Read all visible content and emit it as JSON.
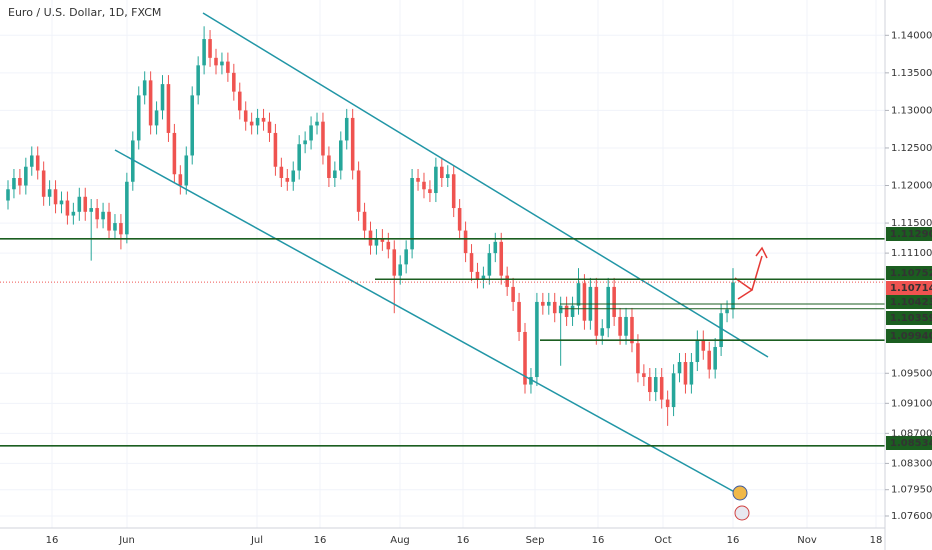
{
  "chart_data": {
    "type": "candlestick",
    "title": "Euro / U.S. Dollar, 1D, FXCM",
    "up_color": "#26a69a",
    "down_color": "#ef5350",
    "ylim": [
      1.0744,
      1.1447
    ],
    "yticks": [
      {
        "value": 1.14,
        "label": "1.14000"
      },
      {
        "value": 1.135,
        "label": "1.13500"
      },
      {
        "value": 1.13,
        "label": "1.13000"
      },
      {
        "value": 1.125,
        "label": "1.12500"
      },
      {
        "value": 1.12,
        "label": "1.12000"
      },
      {
        "value": 1.115,
        "label": "1.11500"
      },
      {
        "value": 1.111,
        "label": "1.11100"
      },
      {
        "value": 1.095,
        "label": "1.09500"
      },
      {
        "value": 1.091,
        "label": "1.09100"
      },
      {
        "value": 1.087,
        "label": "1.08700"
      },
      {
        "value": 1.083,
        "label": "1.08300"
      },
      {
        "value": 1.0795,
        "label": "1.07950"
      },
      {
        "value": 1.076,
        "label": "1.07600"
      }
    ],
    "xtick_labels": [
      "16",
      "Jun",
      "Jul",
      "16",
      "Aug",
      "16",
      "Sep",
      "16",
      "Oct",
      "16",
      "Nov",
      "18"
    ],
    "levels": [
      {
        "value": 1.1129,
        "label": "1.11290"
      },
      {
        "value": 1.10752,
        "label": "1.10752"
      },
      {
        "value": 1.10423,
        "label": "1.10423"
      },
      {
        "value": 1.10359,
        "label": "1.10359"
      },
      {
        "value": 1.0994,
        "label": "1.09940"
      },
      {
        "value": 1.08534,
        "label": "1.08534"
      }
    ],
    "last_price": {
      "value": 1.10714,
      "label": "1.10714"
    },
    "open": [
      1.118,
      1.1195,
      1.121,
      1.12,
      1.1225,
      1.124,
      1.122,
      1.1185,
      1.1195,
      1.1175,
      1.118,
      1.116,
      1.1165,
      1.1185,
      1.1165,
      1.117,
      1.1155,
      1.1165,
      1.114,
      1.115,
      1.1135,
      1.1205,
      1.126,
      1.132,
      1.134,
      1.128,
      1.13,
      1.1335,
      1.127,
      1.1215,
      1.12,
      1.124,
      1.132,
      1.136,
      1.1395,
      1.137,
      1.136,
      1.1365,
      1.135,
      1.1325,
      1.13,
      1.1285,
      1.128,
      1.129,
      1.1285,
      1.127,
      1.1225,
      1.121,
      1.1205,
      1.122,
      1.1255,
      1.126,
      1.128,
      1.1285,
      1.124,
      1.121,
      1.122,
      1.126,
      1.129,
      1.122,
      1.1165,
      1.114,
      1.112,
      1.113,
      1.1125,
      1.1115,
      1.108,
      1.1095,
      1.1115,
      1.121,
      1.1205,
      1.1195,
      1.119,
      1.1225,
      1.121,
      1.1215,
      1.117,
      1.114,
      1.111,
      1.1085,
      1.1075,
      1.108,
      1.111,
      1.1125,
      1.108,
      1.1065,
      1.1045,
      1.1005,
      1.0935,
      1.0945,
      1.1045,
      1.104,
      1.1045,
      1.103,
      1.104,
      1.1025,
      1.104,
      1.107,
      1.102,
      1.1065,
      1.1,
      1.101,
      1.1065,
      1.1025,
      1.1,
      1.1025,
      1.099,
      1.095,
      1.0945,
      1.0925,
      1.0945,
      1.0915,
      1.0905,
      1.095,
      1.0965,
      1.0935,
      1.0965,
      1.0995,
      1.098,
      1.0955,
      1.0985,
      1.103,
      1.1035
    ],
    "high": [
      1.1207,
      1.1222,
      1.1222,
      1.1237,
      1.1252,
      1.1252,
      1.1232,
      1.1207,
      1.1207,
      1.1192,
      1.1192,
      1.1177,
      1.1197,
      1.1197,
      1.1182,
      1.1182,
      1.1177,
      1.1177,
      1.1162,
      1.1162,
      1.1217,
      1.1272,
      1.1332,
      1.1352,
      1.1352,
      1.1312,
      1.1347,
      1.1347,
      1.1282,
      1.1227,
      1.1252,
      1.1332,
      1.1372,
      1.1412,
      1.1407,
      1.1382,
      1.1377,
      1.1377,
      1.1362,
      1.1337,
      1.1312,
      1.1297,
      1.1302,
      1.1302,
      1.1297,
      1.1282,
      1.1237,
      1.1222,
      1.1232,
      1.1267,
      1.1272,
      1.1292,
      1.1297,
      1.1297,
      1.1252,
      1.1232,
      1.1272,
      1.1302,
      1.1302,
      1.1232,
      1.1177,
      1.1152,
      1.1142,
      1.1142,
      1.1137,
      1.1127,
      1.1107,
      1.1127,
      1.1222,
      1.1222,
      1.1217,
      1.1207,
      1.1237,
      1.1237,
      1.1227,
      1.1227,
      1.1182,
      1.1152,
      1.1122,
      1.1097,
      1.1092,
      1.1122,
      1.1137,
      1.1137,
      1.1092,
      1.1077,
      1.1057,
      1.1017,
      1.0957,
      1.1057,
      1.1057,
      1.1057,
      1.1057,
      1.1052,
      1.1052,
      1.1052,
      1.109,
      1.1082,
      1.1077,
      1.1077,
      1.1022,
      1.1077,
      1.1077,
      1.1037,
      1.1037,
      1.1037,
      1.1002,
      1.0962,
      1.0957,
      1.0957,
      1.0957,
      1.0927,
      1.0962,
      1.0977,
      1.0977,
      1.0977,
      1.1007,
      1.1007,
      1.0992,
      1.0997,
      1.1042,
      1.1047,
      1.109
    ],
    "low": [
      1.1168,
      1.1183,
      1.1188,
      1.1188,
      1.1213,
      1.1208,
      1.1173,
      1.1173,
      1.1163,
      1.1163,
      1.1148,
      1.1148,
      1.1153,
      1.1153,
      1.11,
      1.1143,
      1.1143,
      1.1128,
      1.1128,
      1.1115,
      1.1123,
      1.1193,
      1.1248,
      1.1308,
      1.1268,
      1.1268,
      1.1288,
      1.1258,
      1.1203,
      1.1188,
      1.1188,
      1.1228,
      1.1308,
      1.1348,
      1.1358,
      1.1348,
      1.1348,
      1.1338,
      1.1313,
      1.1288,
      1.1273,
      1.1268,
      1.1268,
      1.1273,
      1.1258,
      1.1213,
      1.1198,
      1.1193,
      1.1193,
      1.1208,
      1.1243,
      1.1248,
      1.1268,
      1.1228,
      1.1198,
      1.1198,
      1.1208,
      1.1248,
      1.1208,
      1.1153,
      1.1128,
      1.1108,
      1.1108,
      1.1113,
      1.1103,
      1.103,
      1.1068,
      1.1083,
      1.1103,
      1.1193,
      1.1183,
      1.1178,
      1.1178,
      1.1198,
      1.1198,
      1.1158,
      1.1128,
      1.1098,
      1.1073,
      1.1063,
      1.1063,
      1.1068,
      1.1098,
      1.1068,
      1.1053,
      1.1033,
      1.0993,
      1.0923,
      1.0923,
      1.0933,
      1.1028,
      1.1028,
      1.1018,
      1.096,
      1.1013,
      1.1013,
      1.1028,
      1.1008,
      1.1008,
      1.0988,
      1.0988,
      1.0998,
      1.1013,
      1.0988,
      1.0988,
      1.0978,
      1.0938,
      1.0933,
      1.0913,
      1.0913,
      1.0903,
      1.088,
      1.0893,
      1.0938,
      1.0923,
      1.0923,
      1.0953,
      1.0968,
      1.0943,
      1.0943,
      1.0973,
      1.1018,
      1.1023
    ],
    "close": [
      1.1195,
      1.121,
      1.12,
      1.1225,
      1.124,
      1.122,
      1.1185,
      1.1195,
      1.1175,
      1.118,
      1.116,
      1.1165,
      1.1185,
      1.1165,
      1.117,
      1.1155,
      1.1165,
      1.114,
      1.115,
      1.1135,
      1.1205,
      1.126,
      1.132,
      1.134,
      1.128,
      1.13,
      1.1335,
      1.127,
      1.1215,
      1.12,
      1.124,
      1.132,
      1.136,
      1.1395,
      1.137,
      1.136,
      1.1365,
      1.135,
      1.1325,
      1.13,
      1.1285,
      1.128,
      1.129,
      1.1285,
      1.127,
      1.1225,
      1.121,
      1.1205,
      1.122,
      1.1255,
      1.126,
      1.128,
      1.1285,
      1.124,
      1.121,
      1.122,
      1.126,
      1.129,
      1.122,
      1.1165,
      1.114,
      1.112,
      1.113,
      1.1125,
      1.1115,
      1.108,
      1.1095,
      1.1115,
      1.121,
      1.1205,
      1.1195,
      1.119,
      1.1225,
      1.121,
      1.1215,
      1.117,
      1.114,
      1.111,
      1.1085,
      1.1075,
      1.108,
      1.111,
      1.1125,
      1.108,
      1.1065,
      1.1045,
      1.1005,
      1.0935,
      1.0945,
      1.1045,
      1.104,
      1.1045,
      1.103,
      1.104,
      1.1025,
      1.104,
      1.107,
      1.102,
      1.1065,
      1.1,
      1.101,
      1.1065,
      1.1025,
      1.1,
      1.1025,
      1.099,
      1.095,
      1.0945,
      1.0925,
      1.0945,
      1.0915,
      1.0905,
      1.095,
      1.0965,
      1.0935,
      1.0965,
      1.0995,
      1.098,
      1.0955,
      1.0985,
      1.103,
      1.1035,
      1.1071
    ]
  }
}
